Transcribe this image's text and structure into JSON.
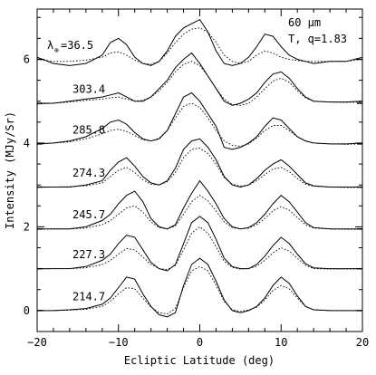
{
  "chart_data": {
    "type": "line",
    "xlabel": "Ecliptic Latitude (deg)",
    "ylabel": "Intensity (MJy/Sr)",
    "xlim": [
      -20,
      20
    ],
    "ylim": [
      -0.5,
      7.2
    ],
    "xticks": [
      -20,
      -10,
      0,
      10,
      20
    ],
    "yticks": [
      0,
      2,
      4,
      6
    ],
    "xtick_labels": [
      "−20",
      "−10",
      "0",
      "10",
      "20"
    ],
    "ytick_labels": [
      "0",
      "2",
      "4",
      "6"
    ],
    "grid": false,
    "legend": "none",
    "annotation": {
      "wavelength": "60 μm",
      "model": "T, q=1.83",
      "lambda_symbol": "λ",
      "lambda_subscript": "⊕"
    },
    "series_labels": [
      "=36.5",
      "303.4",
      "285.8",
      "274.3",
      "245.7",
      "227.3",
      "214.7"
    ],
    "offsets": [
      6.0,
      4.95,
      3.98,
      2.95,
      1.95,
      1.0,
      0.0
    ],
    "x": [
      -20,
      -18,
      -16,
      -14,
      -12,
      -11,
      -10,
      -9,
      -8,
      -7,
      -6,
      -5,
      -4,
      -3,
      -2,
      -1,
      0,
      1,
      2,
      3,
      4,
      5,
      6,
      7,
      8,
      9,
      10,
      11,
      12,
      13,
      14,
      16,
      18,
      20
    ],
    "series": [
      {
        "observed": [
          6.05,
          5.9,
          5.85,
          5.9,
          6.1,
          6.4,
          6.5,
          6.35,
          6.05,
          5.9,
          5.85,
          5.95,
          6.2,
          6.55,
          6.75,
          6.85,
          6.95,
          6.65,
          6.2,
          5.9,
          5.85,
          5.9,
          6.05,
          6.3,
          6.6,
          6.55,
          6.3,
          6.1,
          6.0,
          5.95,
          5.9,
          5.95,
          5.95,
          6.05
        ],
        "model": [
          6.0,
          5.95,
          5.95,
          5.98,
          6.05,
          6.15,
          6.18,
          6.1,
          5.98,
          5.9,
          5.88,
          5.95,
          6.15,
          6.4,
          6.6,
          6.72,
          6.75,
          6.65,
          6.4,
          6.1,
          5.95,
          5.9,
          5.95,
          6.1,
          6.2,
          6.15,
          6.05,
          6.0,
          5.97,
          5.95,
          5.95,
          5.95,
          5.95,
          6.0
        ]
      },
      {
        "observed": [
          4.95,
          4.95,
          5.0,
          5.05,
          5.1,
          5.15,
          5.2,
          5.1,
          5.0,
          5.0,
          5.1,
          5.3,
          5.5,
          5.8,
          6.0,
          6.15,
          5.9,
          5.6,
          5.3,
          5.0,
          4.9,
          4.95,
          5.05,
          5.2,
          5.45,
          5.65,
          5.7,
          5.55,
          5.3,
          5.1,
          5.0,
          4.98,
          4.98,
          5.0
        ],
        "model": [
          4.93,
          4.95,
          4.98,
          5.02,
          5.05,
          5.08,
          5.1,
          5.05,
          5.0,
          5.02,
          5.1,
          5.25,
          5.45,
          5.7,
          5.88,
          5.95,
          5.85,
          5.6,
          5.3,
          5.05,
          4.92,
          4.9,
          4.95,
          5.1,
          5.3,
          5.48,
          5.55,
          5.45,
          5.25,
          5.08,
          5.0,
          4.98,
          4.97,
          4.98
        ]
      },
      {
        "observed": [
          3.98,
          4.0,
          4.05,
          4.15,
          4.35,
          4.5,
          4.55,
          4.45,
          4.25,
          4.1,
          4.05,
          4.1,
          4.3,
          4.7,
          5.1,
          5.2,
          5.0,
          4.7,
          4.4,
          3.9,
          3.85,
          3.9,
          4.0,
          4.15,
          4.4,
          4.6,
          4.55,
          4.35,
          4.15,
          4.05,
          4.0,
          3.98,
          3.98,
          4.0
        ],
        "model": [
          3.97,
          4.0,
          4.03,
          4.1,
          4.22,
          4.3,
          4.33,
          4.28,
          4.18,
          4.08,
          4.05,
          4.12,
          4.3,
          4.6,
          4.88,
          4.95,
          4.85,
          4.6,
          4.3,
          4.05,
          3.95,
          3.92,
          3.98,
          4.12,
          4.3,
          4.42,
          4.42,
          4.3,
          4.15,
          4.05,
          4.0,
          3.98,
          3.97,
          3.98
        ]
      },
      {
        "observed": [
          2.95,
          2.95,
          2.95,
          3.0,
          3.1,
          3.35,
          3.55,
          3.65,
          3.45,
          3.2,
          3.05,
          3.0,
          3.1,
          3.4,
          3.85,
          4.05,
          4.1,
          3.9,
          3.6,
          3.2,
          3.0,
          2.95,
          3.0,
          3.15,
          3.35,
          3.5,
          3.6,
          3.45,
          3.25,
          3.05,
          2.98,
          2.95,
          2.95,
          2.95
        ],
        "model": [
          2.94,
          2.95,
          2.96,
          2.98,
          3.05,
          3.2,
          3.35,
          3.42,
          3.3,
          3.12,
          3.02,
          3.0,
          3.08,
          3.3,
          3.65,
          3.85,
          3.88,
          3.75,
          3.5,
          3.18,
          3.02,
          2.97,
          3.0,
          3.1,
          3.25,
          3.38,
          3.42,
          3.32,
          3.15,
          3.02,
          2.97,
          2.95,
          2.94,
          2.94
        ]
      },
      {
        "observed": [
          1.95,
          1.95,
          1.95,
          2.0,
          2.15,
          2.3,
          2.55,
          2.75,
          2.85,
          2.6,
          2.2,
          2.0,
          1.95,
          2.05,
          2.45,
          2.8,
          3.1,
          2.85,
          2.55,
          2.2,
          2.0,
          1.95,
          1.98,
          2.1,
          2.3,
          2.55,
          2.75,
          2.6,
          2.35,
          2.1,
          1.98,
          1.95,
          1.95,
          1.95
        ],
        "model": [
          1.94,
          1.95,
          1.95,
          1.97,
          2.05,
          2.15,
          2.3,
          2.45,
          2.5,
          2.35,
          2.12,
          1.98,
          1.95,
          2.02,
          2.3,
          2.6,
          2.75,
          2.62,
          2.38,
          2.12,
          1.98,
          1.95,
          1.97,
          2.05,
          2.2,
          2.38,
          2.48,
          2.4,
          2.22,
          2.05,
          1.97,
          1.95,
          1.94,
          1.94
        ]
      },
      {
        "observed": [
          1.0,
          1.0,
          1.0,
          1.05,
          1.2,
          1.35,
          1.6,
          1.8,
          1.75,
          1.45,
          1.15,
          1.0,
          0.95,
          1.1,
          1.6,
          2.1,
          2.25,
          2.1,
          1.7,
          1.25,
          1.05,
          1.0,
          1.0,
          1.1,
          1.3,
          1.55,
          1.75,
          1.6,
          1.35,
          1.12,
          1.02,
          1.0,
          1.0,
          1.0
        ],
        "model": [
          0.99,
          1.0,
          1.0,
          1.02,
          1.1,
          1.2,
          1.35,
          1.48,
          1.45,
          1.28,
          1.1,
          1.0,
          0.98,
          1.08,
          1.45,
          1.85,
          2.0,
          1.85,
          1.52,
          1.18,
          1.03,
          0.99,
          1.0,
          1.06,
          1.2,
          1.38,
          1.5,
          1.42,
          1.25,
          1.08,
          1.0,
          0.99,
          0.99,
          0.99
        ]
      },
      {
        "observed": [
          0.0,
          0.0,
          0.02,
          0.05,
          0.15,
          0.3,
          0.55,
          0.8,
          0.75,
          0.4,
          0.1,
          -0.1,
          -0.15,
          -0.05,
          0.6,
          1.1,
          1.25,
          1.1,
          0.7,
          0.25,
          0.0,
          -0.05,
          0.0,
          0.1,
          0.3,
          0.6,
          0.8,
          0.65,
          0.35,
          0.1,
          0.02,
          0.0,
          0.0,
          0.0
        ],
        "model": [
          0.0,
          0.0,
          0.01,
          0.03,
          0.1,
          0.22,
          0.4,
          0.55,
          0.52,
          0.3,
          0.08,
          -0.05,
          -0.08,
          0.05,
          0.55,
          0.95,
          1.05,
          0.95,
          0.6,
          0.22,
          0.02,
          -0.02,
          0.02,
          0.08,
          0.25,
          0.48,
          0.6,
          0.52,
          0.3,
          0.1,
          0.02,
          0.0,
          0.0,
          0.0
        ]
      }
    ]
  }
}
